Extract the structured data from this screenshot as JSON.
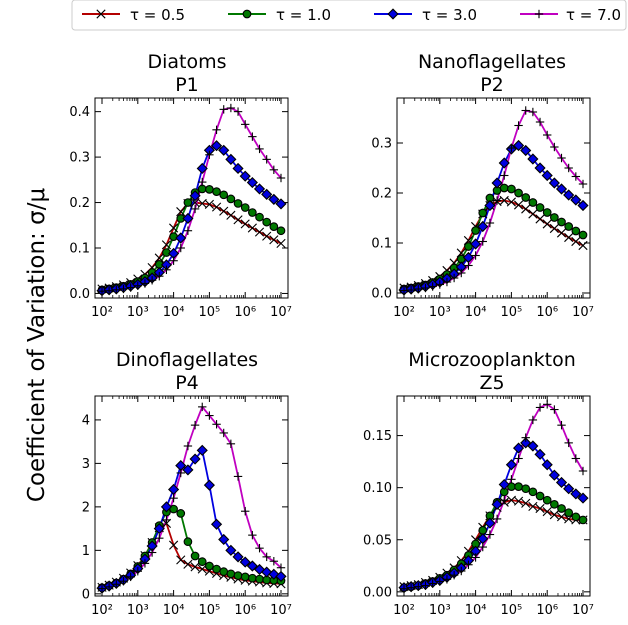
{
  "figure": {
    "ylabel": "Coefficient of Variation: σ/μ"
  },
  "legend": {
    "placement": "top",
    "entries": [
      {
        "label": "τ = 0.5",
        "color": "#b30000",
        "marker": "x"
      },
      {
        "label": "τ = 1.0",
        "color": "#007800",
        "marker": "circle"
      },
      {
        "label": "τ = 3.0",
        "color": "#0000e0",
        "marker": "diamond"
      },
      {
        "label": "τ = 7.0",
        "color": "#c000c0",
        "marker": "plus"
      }
    ]
  },
  "chart_data": [
    {
      "type": "line",
      "title": "Diatoms\nP1",
      "title_lines": [
        "Diatoms",
        "P1"
      ],
      "xscale": "log",
      "xlim": [
        100,
        10000000
      ],
      "x_ticks": [
        100,
        1000,
        10000,
        100000,
        1000000,
        10000000
      ],
      "x_tick_labels": [
        "10²",
        "10³",
        "10⁴",
        "10⁵",
        "10⁶",
        "10⁷"
      ],
      "ylim": [
        -0.01,
        0.43
      ],
      "y_ticks": [
        0.0,
        0.1,
        0.2,
        0.3,
        0.4
      ],
      "y_tick_labels": [
        "0.0",
        "0.1",
        "0.2",
        "0.3",
        "0.4"
      ],
      "x": [
        100,
        158,
        251,
        398,
        631,
        1000,
        1585,
        2512,
        3981,
        6310,
        10000,
        15849,
        25119,
        39811,
        63096,
        100000,
        158489,
        251189,
        398107,
        630957,
        1000000,
        1584893,
        2511886,
        3981072,
        6309573,
        10000000
      ],
      "series": [
        {
          "name": "τ = 0.5",
          "values": [
            0.01,
            0.012,
            0.015,
            0.019,
            0.024,
            0.032,
            0.042,
            0.057,
            0.078,
            0.107,
            0.144,
            0.18,
            0.198,
            0.2,
            0.198,
            0.196,
            0.19,
            0.181,
            0.172,
            0.162,
            0.153,
            0.144,
            0.135,
            0.126,
            0.118,
            0.11
          ]
        },
        {
          "name": "τ = 1.0",
          "values": [
            0.008,
            0.01,
            0.013,
            0.016,
            0.02,
            0.026,
            0.034,
            0.046,
            0.064,
            0.09,
            0.125,
            0.165,
            0.2,
            0.222,
            0.23,
            0.229,
            0.224,
            0.217,
            0.208,
            0.198,
            0.189,
            0.178,
            0.168,
            0.157,
            0.147,
            0.138
          ]
        },
        {
          "name": "τ = 3.0",
          "values": [
            0.006,
            0.008,
            0.01,
            0.013,
            0.016,
            0.02,
            0.026,
            0.034,
            0.046,
            0.063,
            0.088,
            0.122,
            0.165,
            0.215,
            0.275,
            0.315,
            0.325,
            0.315,
            0.295,
            0.275,
            0.258,
            0.244,
            0.23,
            0.218,
            0.207,
            0.197
          ]
        },
        {
          "name": "τ = 7.0",
          "values": [
            0.005,
            0.006,
            0.008,
            0.01,
            0.013,
            0.017,
            0.022,
            0.029,
            0.038,
            0.052,
            0.072,
            0.1,
            0.138,
            0.186,
            0.245,
            0.305,
            0.36,
            0.405,
            0.408,
            0.4,
            0.372,
            0.345,
            0.318,
            0.295,
            0.272,
            0.254
          ]
        }
      ]
    },
    {
      "type": "line",
      "title": "Nanoflagellates\nP2",
      "title_lines": [
        "Nanoflagellates",
        "P2"
      ],
      "xscale": "log",
      "xlim": [
        100,
        10000000
      ],
      "x_ticks": [
        100,
        1000,
        10000,
        100000,
        1000000,
        10000000
      ],
      "x_tick_labels": [
        "10²",
        "10³",
        "10⁴",
        "10⁵",
        "10⁶",
        "10⁷"
      ],
      "ylim": [
        -0.01,
        0.39
      ],
      "y_ticks": [
        0.0,
        0.1,
        0.2,
        0.3
      ],
      "y_tick_labels": [
        "0.0",
        "0.1",
        "0.2",
        "0.3"
      ],
      "x": [
        100,
        158,
        251,
        398,
        631,
        1000,
        1585,
        2512,
        3981,
        6310,
        10000,
        15849,
        25119,
        39811,
        63096,
        100000,
        158489,
        251189,
        398107,
        630957,
        1000000,
        1584893,
        2511886,
        3981072,
        6309573,
        10000000
      ],
      "series": [
        {
          "name": "τ = 0.5",
          "values": [
            0.01,
            0.012,
            0.015,
            0.019,
            0.025,
            0.033,
            0.045,
            0.06,
            0.08,
            0.105,
            0.133,
            0.158,
            0.175,
            0.183,
            0.185,
            0.182,
            0.176,
            0.168,
            0.158,
            0.148,
            0.138,
            0.129,
            0.12,
            0.111,
            0.103,
            0.095
          ]
        },
        {
          "name": "τ = 1.0",
          "values": [
            0.008,
            0.01,
            0.013,
            0.016,
            0.021,
            0.028,
            0.037,
            0.05,
            0.068,
            0.093,
            0.125,
            0.16,
            0.19,
            0.205,
            0.21,
            0.208,
            0.2,
            0.191,
            0.181,
            0.171,
            0.161,
            0.151,
            0.142,
            0.133,
            0.124,
            0.116
          ]
        },
        {
          "name": "τ = 3.0",
          "values": [
            0.006,
            0.008,
            0.01,
            0.013,
            0.017,
            0.022,
            0.029,
            0.038,
            0.052,
            0.071,
            0.098,
            0.133,
            0.175,
            0.22,
            0.26,
            0.288,
            0.295,
            0.285,
            0.268,
            0.25,
            0.235,
            0.22,
            0.208,
            0.196,
            0.186,
            0.175
          ]
        },
        {
          "name": "τ = 7.0",
          "values": [
            0.005,
            0.006,
            0.008,
            0.01,
            0.013,
            0.017,
            0.022,
            0.03,
            0.04,
            0.055,
            0.075,
            0.103,
            0.14,
            0.185,
            0.235,
            0.29,
            0.335,
            0.365,
            0.362,
            0.342,
            0.316,
            0.292,
            0.27,
            0.25,
            0.233,
            0.218
          ]
        }
      ]
    },
    {
      "type": "line",
      "title": "Dinoflagellates\nP4",
      "title_lines": [
        "Dinoflagellates",
        "P4"
      ],
      "xscale": "log",
      "xlim": [
        100,
        10000000
      ],
      "x_ticks": [
        100,
        1000,
        10000,
        100000,
        1000000,
        10000000
      ],
      "x_tick_labels": [
        "10²",
        "10³",
        "10⁴",
        "10⁵",
        "10⁶",
        "10⁷"
      ],
      "ylim": [
        -0.05,
        4.55
      ],
      "y_ticks": [
        0,
        1,
        2,
        3,
        4
      ],
      "y_tick_labels": [
        "0",
        "1",
        "2",
        "3",
        "4"
      ],
      "x": [
        100,
        158,
        251,
        398,
        631,
        1000,
        1585,
        2512,
        3981,
        6310,
        10000,
        15849,
        25119,
        39811,
        63096,
        100000,
        158489,
        251189,
        398107,
        630957,
        1000000,
        1584893,
        2511886,
        3981072,
        6309573,
        10000000
      ],
      "series": [
        {
          "name": "τ = 0.5",
          "values": [
            0.15,
            0.2,
            0.27,
            0.36,
            0.48,
            0.65,
            0.88,
            1.18,
            1.52,
            1.62,
            1.12,
            0.78,
            0.68,
            0.62,
            0.57,
            0.52,
            0.47,
            0.42,
            0.38,
            0.34,
            0.31,
            0.29,
            0.27,
            0.25,
            0.24,
            0.23
          ]
        },
        {
          "name": "τ = 1.0",
          "values": [
            0.14,
            0.19,
            0.25,
            0.34,
            0.46,
            0.63,
            0.87,
            1.18,
            1.57,
            1.88,
            1.95,
            1.85,
            1.2,
            0.87,
            0.74,
            0.64,
            0.57,
            0.51,
            0.46,
            0.42,
            0.39,
            0.36,
            0.34,
            0.32,
            0.31,
            0.3
          ]
        },
        {
          "name": "τ = 3.0",
          "values": [
            0.13,
            0.18,
            0.24,
            0.32,
            0.43,
            0.58,
            0.8,
            1.1,
            1.5,
            2.0,
            2.4,
            2.95,
            2.85,
            3.1,
            3.3,
            2.5,
            1.6,
            1.25,
            1.0,
            0.85,
            0.73,
            0.64,
            0.56,
            0.5,
            0.45,
            0.4
          ]
        },
        {
          "name": "τ = 7.0",
          "values": [
            0.12,
            0.16,
            0.22,
            0.29,
            0.39,
            0.52,
            0.7,
            0.95,
            1.28,
            1.7,
            2.2,
            2.78,
            3.4,
            3.88,
            4.3,
            4.1,
            3.9,
            3.7,
            3.45,
            2.7,
            1.9,
            1.35,
            1.05,
            0.85,
            0.75,
            0.6
          ]
        }
      ]
    },
    {
      "type": "line",
      "title": "Microzooplankton\nZ5",
      "title_lines": [
        "Microzooplankton",
        "Z5"
      ],
      "xscale": "log",
      "xlim": [
        100,
        10000000
      ],
      "x_ticks": [
        100,
        1000,
        10000,
        100000,
        1000000,
        10000000
      ],
      "x_tick_labels": [
        "10²",
        "10³",
        "10⁴",
        "10⁵",
        "10⁶",
        "10⁷"
      ],
      "ylim": [
        -0.004,
        0.188
      ],
      "y_ticks": [
        0.0,
        0.05,
        0.1,
        0.15
      ],
      "y_tick_labels": [
        "0.00",
        "0.05",
        "0.10",
        "0.15"
      ],
      "x": [
        100,
        158,
        251,
        398,
        631,
        1000,
        1585,
        2512,
        3981,
        6310,
        10000,
        15849,
        25119,
        39811,
        63096,
        100000,
        158489,
        251189,
        398107,
        630957,
        1000000,
        1584893,
        2511886,
        3981072,
        6309573,
        10000000
      ],
      "series": [
        {
          "name": "τ = 0.5",
          "values": [
            0.005,
            0.006,
            0.007,
            0.009,
            0.011,
            0.014,
            0.018,
            0.023,
            0.03,
            0.039,
            0.05,
            0.062,
            0.073,
            0.081,
            0.086,
            0.088,
            0.087,
            0.085,
            0.082,
            0.08,
            0.077,
            0.074,
            0.072,
            0.07,
            0.069,
            0.069
          ]
        },
        {
          "name": "τ = 1.0",
          "values": [
            0.004,
            0.005,
            0.006,
            0.008,
            0.01,
            0.013,
            0.016,
            0.021,
            0.027,
            0.035,
            0.046,
            0.059,
            0.073,
            0.086,
            0.096,
            0.101,
            0.101,
            0.099,
            0.096,
            0.092,
            0.088,
            0.084,
            0.08,
            0.076,
            0.072,
            0.069
          ]
        },
        {
          "name": "τ = 3.0",
          "values": [
            0.004,
            0.005,
            0.006,
            0.007,
            0.009,
            0.011,
            0.014,
            0.018,
            0.023,
            0.03,
            0.039,
            0.051,
            0.066,
            0.084,
            0.103,
            0.122,
            0.138,
            0.143,
            0.14,
            0.132,
            0.122,
            0.112,
            0.105,
            0.099,
            0.094,
            0.09
          ]
        },
        {
          "name": "τ = 7.0",
          "values": [
            0.003,
            0.004,
            0.005,
            0.006,
            0.008,
            0.01,
            0.012,
            0.016,
            0.02,
            0.026,
            0.033,
            0.043,
            0.055,
            0.07,
            0.088,
            0.108,
            0.128,
            0.148,
            0.165,
            0.177,
            0.18,
            0.175,
            0.16,
            0.143,
            0.128,
            0.116
          ]
        }
      ]
    }
  ]
}
